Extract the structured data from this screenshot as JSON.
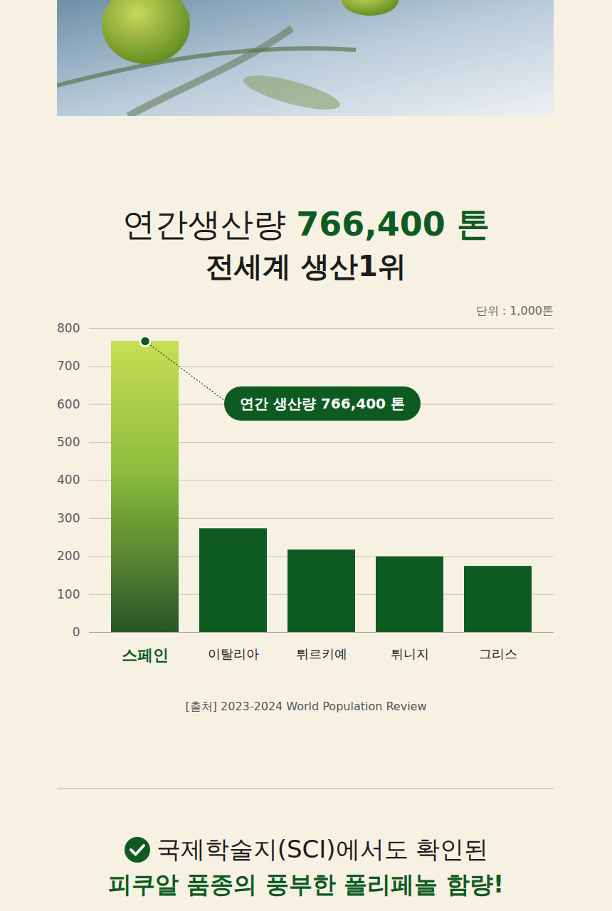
{
  "header": {
    "title": [
      "연간생산량",
      "766,400 톤"
    ],
    "subtitle": "전세계 생산1위"
  },
  "chart_data": {
    "type": "bar",
    "ylabel": "단위 : 1,000톤",
    "categories": [
      "스페인",
      "이탈리아",
      "튀르키예",
      "튀니지",
      "그리스"
    ],
    "values": [
      766.4,
      273,
      217,
      199,
      174
    ],
    "colors": [
      "#8cbc3c",
      "#0e5b22",
      "#0e5b22",
      "#0e5b22",
      "#0e5b22"
    ],
    "ylim": [
      0,
      800
    ],
    "yticks": [
      0,
      100,
      200,
      300,
      400,
      500,
      600,
      700,
      800
    ],
    "grid": true,
    "annotations": [
      {
        "text": "연간 생산량 766,400 톤",
        "category": "스페인",
        "value": 766.4
      }
    ],
    "source": "[출처] 2023-2024 World Population Review"
  },
  "footer": {
    "lines": [
      "국제학술지(SCI)에서도 확인된",
      "피쿠알 품종의 풍부한 폴리페놀 함량!"
    ]
  }
}
